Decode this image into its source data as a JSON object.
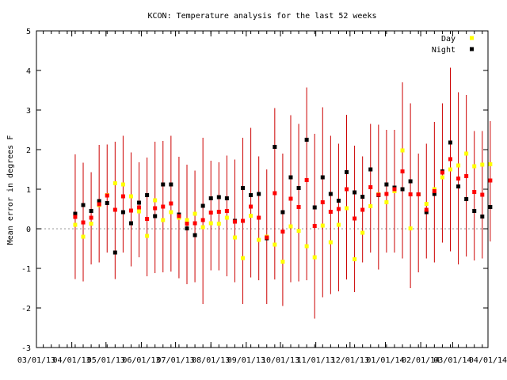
{
  "chart_data": {
    "type": "scatter",
    "title": "KCON: Temperature analysis for the last 52 weeks",
    "xlabel": "",
    "ylabel": "Mean error in degrees F",
    "ylim": [
      -3,
      5
    ],
    "xlim": [
      "03/01/13",
      "04/01/14"
    ],
    "yticks": [
      -3,
      -2,
      -1,
      0,
      1,
      2,
      3,
      4,
      5
    ],
    "xticks": [
      "03/01/13",
      "04/01/13",
      "05/01/13",
      "06/01/13",
      "07/01/13",
      "08/01/13",
      "09/01/13",
      "10/01/13",
      "11/01/13",
      "12/01/13",
      "01/01/14",
      "02/01/14",
      "03/01/14",
      "04/01/14"
    ],
    "zero_line": true,
    "grid": false,
    "legend_position": "top-right",
    "series": [
      {
        "name": "Day",
        "color": "#ffff00"
      },
      {
        "name": "Night",
        "color": "#000000"
      }
    ],
    "weekly_mean_color": "#ff0000",
    "range_color": "#cc0000",
    "weeks": [
      {
        "day": 0.1,
        "night": 0.38,
        "mean": 0.3,
        "low": -1.27,
        "high": 1.88
      },
      {
        "day": -0.2,
        "night": 0.6,
        "mean": 0.16,
        "low": -1.33,
        "high": 1.67
      },
      {
        "day": 0.13,
        "night": 0.45,
        "mean": 0.28,
        "low": -0.9,
        "high": 1.43
      },
      {
        "day": 0.6,
        "night": 0.7,
        "mean": 0.62,
        "low": -0.85,
        "high": 2.12
      },
      {
        "day": 0.85,
        "night": 0.65,
        "mean": 0.84,
        "low": -0.6,
        "high": 2.13
      },
      {
        "day": 1.15,
        "night": -0.6,
        "mean": 0.48,
        "low": -1.27,
        "high": 2.2
      },
      {
        "day": 1.12,
        "night": 0.42,
        "mean": 0.82,
        "low": -0.6,
        "high": 2.35
      },
      {
        "day": 0.82,
        "night": 0.14,
        "mean": 0.46,
        "low": -0.95,
        "high": 1.93
      },
      {
        "day": 0.44,
        "night": 0.66,
        "mean": 0.54,
        "low": -0.72,
        "high": 1.68
      },
      {
        "day": -0.18,
        "night": 0.85,
        "mean": 0.25,
        "low": -1.2,
        "high": 1.8
      },
      {
        "day": 0.72,
        "night": 0.32,
        "mean": 0.52,
        "low": -1.12,
        "high": 2.2
      },
      {
        "day": 0.22,
        "night": 1.12,
        "mean": 0.56,
        "low": -1.1,
        "high": 2.22
      },
      {
        "day": 0.42,
        "night": 1.12,
        "mean": 0.64,
        "low": -1.08,
        "high": 2.35
      },
      {
        "day": 0.28,
        "night": 0.36,
        "mean": 0.32,
        "low": -1.25,
        "high": 1.82
      },
      {
        "day": 0.22,
        "night": 0.01,
        "mean": 0.13,
        "low": -1.4,
        "high": 1.62
      },
      {
        "day": 0.38,
        "night": -0.16,
        "mean": 0.14,
        "low": -1.35,
        "high": 1.47
      },
      {
        "day": 0.04,
        "night": 0.58,
        "mean": 0.22,
        "low": -1.9,
        "high": 2.3
      },
      {
        "day": 0.14,
        "night": 0.77,
        "mean": 0.41,
        "low": -1.05,
        "high": 1.72
      },
      {
        "day": 0.13,
        "night": 0.8,
        "mean": 0.43,
        "low": -1.05,
        "high": 1.68
      },
      {
        "day": 0.28,
        "night": 0.77,
        "mean": 0.45,
        "low": -1.2,
        "high": 1.85
      },
      {
        "day": -0.22,
        "night": 0.2,
        "mean": 0.18,
        "low": -1.35,
        "high": 1.75
      },
      {
        "day": -0.74,
        "night": 1.03,
        "mean": 0.2,
        "low": -1.9,
        "high": 2.3
      },
      {
        "day": 0.33,
        "night": 0.85,
        "mean": 0.56,
        "low": -1.23,
        "high": 2.55
      },
      {
        "day": -0.28,
        "night": 0.88,
        "mean": 0.28,
        "low": -1.3,
        "high": 1.83
      },
      {
        "day": -0.2,
        "night": -0.24,
        "mean": -0.22,
        "low": -1.9,
        "high": 1.5
      },
      {
        "day": -0.4,
        "night": 2.07,
        "mean": 0.9,
        "low": -1.28,
        "high": 3.05
      },
      {
        "day": -0.83,
        "night": 0.42,
        "mean": -0.07,
        "low": -1.95,
        "high": 1.9
      },
      {
        "day": 0.06,
        "night": 1.3,
        "mean": 0.76,
        "low": -1.35,
        "high": 2.87
      },
      {
        "day": -0.05,
        "night": 1.03,
        "mean": 0.55,
        "low": -1.33,
        "high": 2.65
      },
      {
        "day": -0.44,
        "night": 2.25,
        "mean": 1.23,
        "low": -1.3,
        "high": 3.57
      },
      {
        "day": -0.72,
        "night": 0.54,
        "mean": 0.07,
        "low": -2.27,
        "high": 2.4
      },
      {
        "day": 0.08,
        "night": 1.3,
        "mean": 0.67,
        "low": -1.73,
        "high": 3.07
      },
      {
        "day": -0.34,
        "night": 0.88,
        "mean": 0.43,
        "low": -1.65,
        "high": 2.35
      },
      {
        "day": 0.1,
        "night": 0.71,
        "mean": 0.5,
        "low": -1.58,
        "high": 2.15
      },
      {
        "day": 0.52,
        "night": 1.43,
        "mean": 1.0,
        "low": -1.28,
        "high": 2.88
      },
      {
        "day": -0.77,
        "night": 0.92,
        "mean": 0.26,
        "low": -1.6,
        "high": 2.1
      },
      {
        "day": -0.1,
        "night": 0.81,
        "mean": 0.48,
        "low": -0.85,
        "high": 1.83
      },
      {
        "day": 0.57,
        "night": 1.5,
        "mean": 1.05,
        "low": -0.6,
        "high": 2.65
      },
      {
        "day": 0.87,
        "night": 0.85,
        "mean": 0.86,
        "low": -1.03,
        "high": 2.63
      },
      {
        "day": 0.67,
        "night": 1.12,
        "mean": 0.88,
        "low": -0.6,
        "high": 2.5
      },
      {
        "day": 0.95,
        "night": 1.04,
        "mean": 1.0,
        "low": -0.6,
        "high": 2.5
      },
      {
        "day": 1.98,
        "night": 1.0,
        "mean": 1.45,
        "low": -0.75,
        "high": 3.7
      },
      {
        "day": 0.01,
        "night": 1.2,
        "mean": 0.87,
        "low": -1.5,
        "high": 3.17
      },
      {
        "day": 0.87,
        "night": 0.87,
        "mean": 0.87,
        "low": -1.1,
        "high": 1.9
      },
      {
        "day": 0.63,
        "night": 0.42,
        "mean": 0.48,
        "low": -0.75,
        "high": 2.15
      },
      {
        "day": 1.0,
        "night": 0.88,
        "mean": 0.95,
        "low": -0.85,
        "high": 2.7
      },
      {
        "day": 1.3,
        "night": 1.45,
        "mean": 1.42,
        "low": -0.35,
        "high": 3.17
      },
      {
        "day": 1.5,
        "night": 2.18,
        "mean": 1.76,
        "low": -0.57,
        "high": 4.07
      },
      {
        "day": 1.6,
        "night": 1.07,
        "mean": 1.27,
        "low": -0.9,
        "high": 3.45
      },
      {
        "day": 1.9,
        "night": 0.75,
        "mean": 1.33,
        "low": -0.7,
        "high": 3.38
      },
      {
        "day": 1.58,
        "night": 0.45,
        "mean": 0.93,
        "low": -0.8,
        "high": 2.47
      },
      {
        "day": 1.62,
        "night": 0.31,
        "mean": 0.86,
        "low": -0.75,
        "high": 2.47
      },
      {
        "day": 1.63,
        "night": 0.55,
        "mean": 1.22,
        "low": -0.32,
        "high": 2.72
      }
    ]
  }
}
